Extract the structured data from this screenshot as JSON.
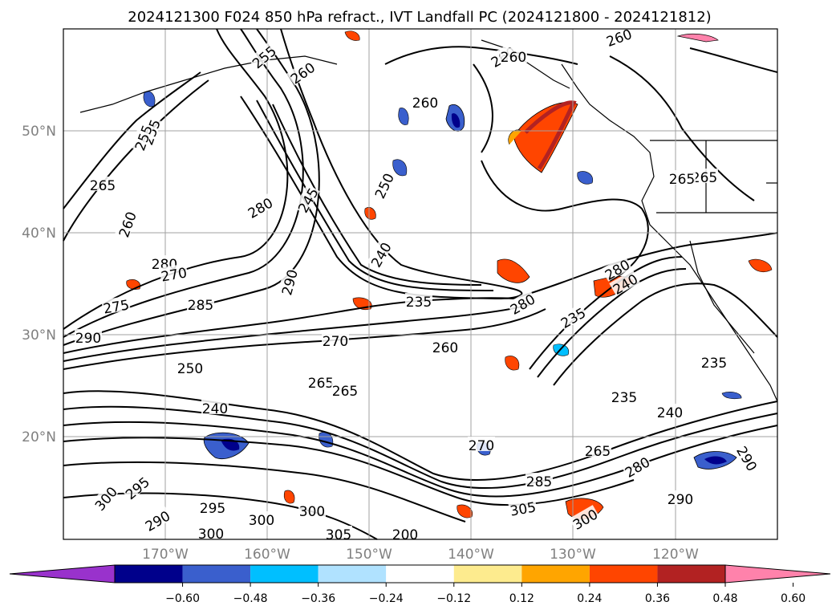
{
  "title": "2024121300 F024 850 hPa refract., IVT Landfall PC (2024121800 - 2024121812)",
  "map": {
    "lon_labels": [
      "170°W",
      "160°W",
      "150°W",
      "140°W",
      "130°W",
      "120°W"
    ],
    "lat_labels": [
      "50°N",
      "40°N",
      "30°N",
      "20°N"
    ],
    "grid": true
  },
  "colorbar": {
    "ticks": [
      "−0.60",
      "−0.48",
      "−0.36",
      "−0.24",
      "−0.12",
      "0.12",
      "0.24",
      "0.36",
      "0.48",
      "0.60"
    ],
    "colors": [
      "#9932cc",
      "#00008b",
      "#3a5fcd",
      "#00bfff",
      "#b0e2ff",
      "#ffffff",
      "#fdeb8e",
      "#ffa500",
      "#ff4500",
      "#b22222",
      "#ff82ab"
    ],
    "extend": "both"
  },
  "contour_labels": [
    {
      "text": "255"
    },
    {
      "text": "260"
    },
    {
      "text": "265"
    },
    {
      "text": "260"
    },
    {
      "text": "255"
    },
    {
      "text": "260"
    },
    {
      "text": "260"
    },
    {
      "text": "255"
    },
    {
      "text": "260"
    },
    {
      "text": "265"
    },
    {
      "text": "245"
    },
    {
      "text": "250"
    },
    {
      "text": "280"
    },
    {
      "text": "260"
    },
    {
      "text": "280"
    },
    {
      "text": "270"
    },
    {
      "text": "290"
    },
    {
      "text": "275"
    },
    {
      "text": "285"
    },
    {
      "text": "290"
    },
    {
      "text": "270"
    },
    {
      "text": "240"
    },
    {
      "text": "235"
    },
    {
      "text": "280"
    },
    {
      "text": "280"
    },
    {
      "text": "240"
    },
    {
      "text": "265"
    },
    {
      "text": "260"
    },
    {
      "text": "265"
    },
    {
      "text": "235"
    },
    {
      "text": "250"
    },
    {
      "text": "240"
    },
    {
      "text": "235"
    },
    {
      "text": "240"
    },
    {
      "text": "265"
    },
    {
      "text": "280"
    },
    {
      "text": "285"
    },
    {
      "text": "270"
    },
    {
      "text": "290"
    },
    {
      "text": "295"
    },
    {
      "text": "300"
    },
    {
      "text": "295"
    },
    {
      "text": "300"
    },
    {
      "text": "300"
    },
    {
      "text": "305"
    },
    {
      "text": "290"
    },
    {
      "text": "300"
    },
    {
      "text": "305"
    },
    {
      "text": "200"
    },
    {
      "text": "300"
    },
    {
      "text": "235"
    },
    {
      "text": "265"
    },
    {
      "text": "290"
    }
  ]
}
